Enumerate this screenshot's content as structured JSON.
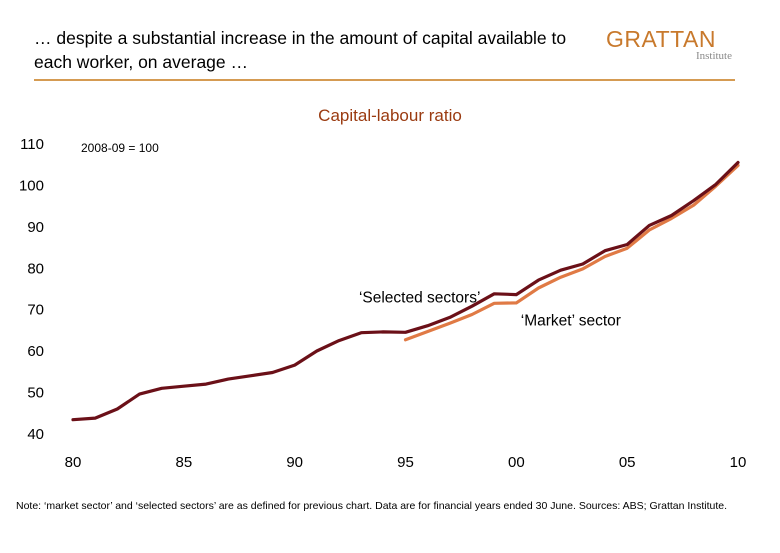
{
  "header": {
    "title": "… despite a substantial increase in the amount of capital available to each worker, on average …",
    "logo_main": "GRATTAN",
    "logo_sub": "Institute",
    "logo_color": "#c8792c",
    "rule_color": "#d59b52"
  },
  "chart_data": {
    "type": "line",
    "title": "Capital-labour ratio",
    "index_note": "2008-09 = 100",
    "ylim": [
      40,
      110
    ],
    "yticks": [
      40,
      50,
      60,
      70,
      80,
      90,
      100,
      110
    ],
    "xlim": [
      1980,
      2010
    ],
    "xticks": [
      {
        "value": 1980,
        "label": "80"
      },
      {
        "value": 1985,
        "label": "85"
      },
      {
        "value": 1990,
        "label": "90"
      },
      {
        "value": 1995,
        "label": "95"
      },
      {
        "value": 2000,
        "label": "00"
      },
      {
        "value": 2005,
        "label": "05"
      },
      {
        "value": 2010,
        "label": "10"
      }
    ],
    "grid": false,
    "series": [
      {
        "name": "‘Selected sectors’",
        "color": "#6b1018",
        "points": [
          [
            1980,
            43.2
          ],
          [
            1981,
            43.6
          ],
          [
            1982,
            45.8
          ],
          [
            1983,
            49.4
          ],
          [
            1984,
            50.8
          ],
          [
            1985,
            51.3
          ],
          [
            1986,
            51.8
          ],
          [
            1987,
            53.0
          ],
          [
            1988,
            53.8
          ],
          [
            1989,
            54.6
          ],
          [
            1990,
            56.4
          ],
          [
            1991,
            59.8
          ],
          [
            1992,
            62.3
          ],
          [
            1993,
            64.2
          ],
          [
            1994,
            64.4
          ],
          [
            1995,
            64.3
          ],
          [
            1996,
            65.9
          ],
          [
            1997,
            67.9
          ],
          [
            1998,
            70.6
          ],
          [
            1999,
            73.6
          ],
          [
            2000,
            73.4
          ],
          [
            2001,
            76.9
          ],
          [
            2002,
            79.3
          ],
          [
            2003,
            80.8
          ],
          [
            2004,
            84.0
          ],
          [
            2005,
            85.5
          ],
          [
            2006,
            90.1
          ],
          [
            2007,
            92.5
          ],
          [
            2008,
            96.1
          ],
          [
            2009,
            100.0
          ],
          [
            2010,
            105.3
          ]
        ]
      },
      {
        "name": "‘Market’ sector",
        "color": "#e07a45",
        "points": [
          [
            1995,
            62.5
          ],
          [
            1996,
            64.5
          ],
          [
            1997,
            66.5
          ],
          [
            1998,
            68.6
          ],
          [
            1999,
            71.3
          ],
          [
            2000,
            71.4
          ],
          [
            2001,
            75.0
          ],
          [
            2002,
            77.6
          ],
          [
            2003,
            79.6
          ],
          [
            2004,
            82.6
          ],
          [
            2005,
            84.6
          ],
          [
            2006,
            89.0
          ],
          [
            2007,
            91.8
          ],
          [
            2008,
            95.0
          ],
          [
            2009,
            99.6
          ],
          [
            2010,
            104.6
          ]
        ]
      }
    ],
    "annotations": [
      {
        "text": "‘Selected sectors’",
        "x": 1992.9,
        "y": 71.5,
        "anchor": "start"
      },
      {
        "text": "‘Market’ sector",
        "x": 2000.2,
        "y": 66.0,
        "anchor": "start"
      }
    ]
  },
  "footer": {
    "note": "Note: ‘market sector’ and ‘selected sectors’ are as defined for previous chart. Data are for financial years ended 30 June. Sources: ABS; Grattan Institute."
  }
}
